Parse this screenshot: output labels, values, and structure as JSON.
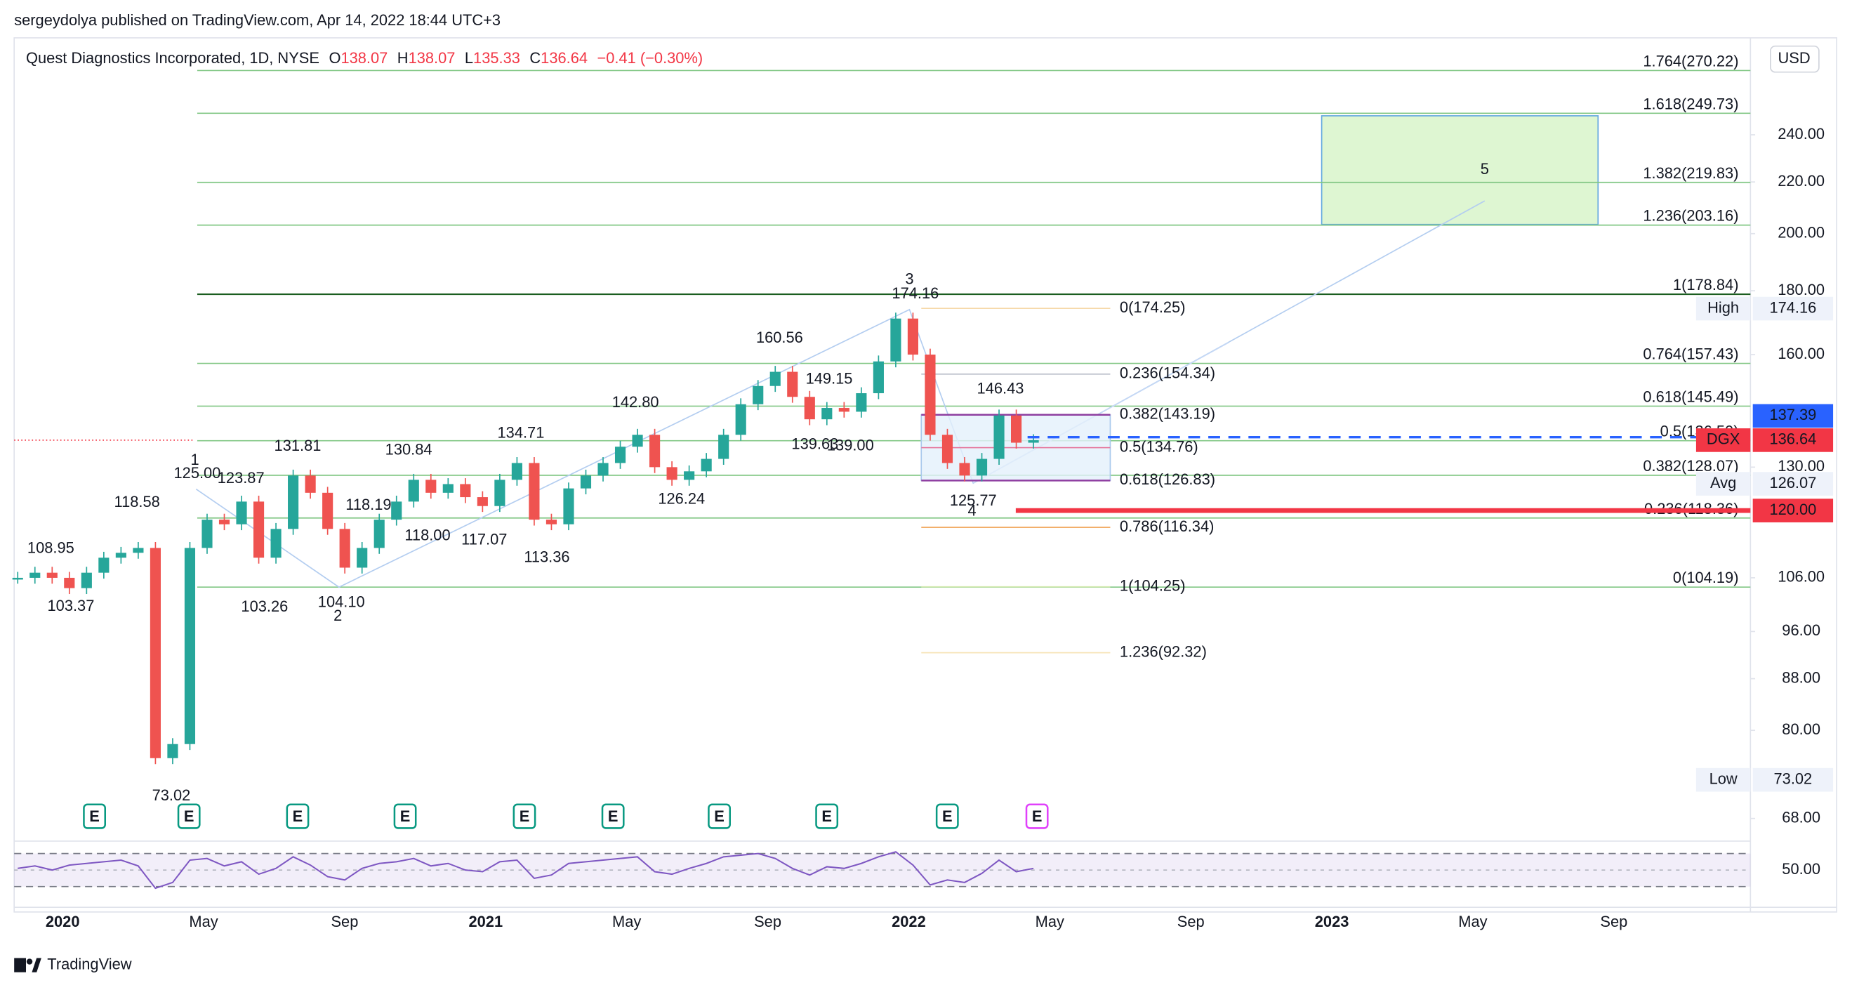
{
  "header": {
    "publisher": "sergeydolya published on TradingView.com, Apr 14, 2022 18:44 UTC+3"
  },
  "footer": {
    "brand": "TradingView"
  },
  "chart_data": {
    "type": "candle",
    "title": "Quest Diagnostics Incorporated, 1D, NYSE",
    "ohlc": [
      {
        "key": "O",
        "value": 138.07
      },
      {
        "key": "H",
        "value": 138.07
      },
      {
        "key": "L",
        "value": 135.33
      },
      {
        "key": "C",
        "value": 136.64
      }
    ],
    "change": "−0.41 (−0.30%)",
    "currency": "USD",
    "up_color": "#26a69a",
    "down_color": "#ef5350",
    "series": [
      {
        "name": "DGX",
        "color": "#f23645",
        "values": [
          106,
          107,
          106,
          104,
          107,
          110,
          111,
          112,
          76,
          78,
          112,
          118,
          117,
          122,
          110,
          116,
          128,
          124,
          116,
          108,
          112,
          118,
          122,
          127,
          124,
          126,
          123,
          121,
          127,
          131,
          118,
          117,
          125,
          128,
          131,
          135,
          138,
          130,
          127,
          129,
          132,
          138,
          146,
          151,
          155,
          148,
          142,
          145,
          144,
          149,
          158,
          171,
          160,
          138,
          131,
          128,
          132,
          143,
          136,
          136.64
        ]
      }
    ],
    "log_scale": true,
    "grid": false,
    "ylim": [
      65.5,
      287
    ],
    "yticks": [
      {
        "value": 68,
        "label": "68.00"
      },
      {
        "value": 80,
        "label": "80.00"
      },
      {
        "value": 88,
        "label": "88.00"
      },
      {
        "value": 96,
        "label": "96.00"
      },
      {
        "value": 106,
        "label": "106.00"
      },
      {
        "value": 130,
        "label": "130.00"
      },
      {
        "value": 160,
        "label": "160.00"
      },
      {
        "value": 180,
        "label": "180.00"
      },
      {
        "value": 200,
        "label": "200.00"
      },
      {
        "value": 220,
        "label": "220.00"
      },
      {
        "value": 240,
        "label": "240.00"
      }
    ],
    "xticks": [
      "2020",
      "May",
      "Sep",
      "2021",
      "May",
      "Sep",
      "2022",
      "May",
      "Sep",
      "2023",
      "May",
      "Sep"
    ],
    "fib_extension": [
      {
        "label": "1.764(270.22)",
        "value": 270.22,
        "color": "#81c784"
      },
      {
        "label": "1.618(249.73)",
        "value": 249.73,
        "color": "#81c784"
      },
      {
        "label": "1.382(219.83)",
        "value": 219.83,
        "color": "#81c784"
      },
      {
        "label": "1.236(203.16)",
        "value": 203.16,
        "color": "#81c784"
      },
      {
        "label": "1(178.84)",
        "value": 178.84,
        "color": "#1b5e20"
      },
      {
        "label": "0.764(157.43)",
        "value": 157.43,
        "color": "#81c784"
      },
      {
        "label": "0.618(145.49)",
        "value": 145.49,
        "color": "#81c784"
      },
      {
        "label": "0.5(136.50)",
        "value": 136.5,
        "color": "#81c784"
      },
      {
        "label": "0.382(128.07)",
        "value": 128.07,
        "color": "#81c784"
      },
      {
        "label": "0.236(118.36)",
        "value": 118.36,
        "color": "#81c784"
      },
      {
        "label": "0(104.19)",
        "value": 104.19,
        "color": "#81c784"
      }
    ],
    "fib_retracement": [
      {
        "label": "0(174.25)",
        "value": 174.25,
        "color": "#f6d8a8"
      },
      {
        "label": "0.236(154.34)",
        "value": 154.34,
        "color": "#b8bcc8"
      },
      {
        "label": "0.382(143.19)",
        "value": 143.19,
        "color": "#8e3ea0"
      },
      {
        "label": "0.5(134.76)",
        "value": 134.76,
        "color": "#e57399"
      },
      {
        "label": "0.618(126.83)",
        "value": 126.83,
        "color": "#8e3ea0"
      },
      {
        "label": "0.786(116.34)",
        "value": 116.34,
        "color": "#f0a050"
      },
      {
        "label": "1(104.25)",
        "value": 104.25,
        "color": "#d4eab0"
      },
      {
        "label": "1.236(92.32)",
        "value": 92.32,
        "color": "#f7e5b8"
      }
    ],
    "price_labels": [
      {
        "value": 108.95,
        "label": "108.95"
      },
      {
        "value": 103.37,
        "label": "103.37"
      },
      {
        "value": 118.58,
        "label": "118.58"
      },
      {
        "value": 73.02,
        "label": "73.02"
      },
      {
        "value": 125,
        "label": "125.00"
      },
      {
        "value": 123.87,
        "label": "123.87"
      },
      {
        "value": 131.81,
        "label": "131.81"
      },
      {
        "value": 103.26,
        "label": "103.26"
      },
      {
        "value": 104.1,
        "label": "104.10"
      },
      {
        "value": 118.19,
        "label": "118.19"
      },
      {
        "value": 130.84,
        "label": "130.84"
      },
      {
        "value": 118,
        "label": "118.00"
      },
      {
        "value": 134.71,
        "label": "134.71"
      },
      {
        "value": 117.07,
        "label": "117.07"
      },
      {
        "value": 113.36,
        "label": "113.36"
      },
      {
        "value": 142.8,
        "label": "142.80"
      },
      {
        "value": 126.24,
        "label": "126.24"
      },
      {
        "value": 160.56,
        "label": "160.56"
      },
      {
        "value": 149.15,
        "label": "149.15"
      },
      {
        "value": 139.63,
        "label": "139.63"
      },
      {
        "value": 139,
        "label": "139.00"
      },
      {
        "value": 174.16,
        "label": "174.16"
      },
      {
        "value": 146.43,
        "label": "146.43"
      },
      {
        "value": 125.77,
        "label": "125.77"
      }
    ],
    "waves": [
      "1",
      "2",
      "3",
      "4",
      "5"
    ],
    "stats": [
      {
        "label": "High",
        "value": 174.16
      },
      {
        "label": "Avg",
        "value": 126.07
      },
      {
        "label": "Low",
        "value": 73.02
      }
    ],
    "ray_line": {
      "value": 137.39,
      "label": "137.39"
    },
    "alert_line": {
      "value": 120,
      "label": "120.00"
    },
    "earnings": [
      "E",
      "E",
      "E",
      "E",
      "E",
      "E",
      "E",
      "E",
      "E",
      "E"
    ],
    "rsi": {
      "color": "#7e57c2",
      "ylim": [
        5,
        85
      ],
      "bands": [
        30,
        70
      ],
      "yticks": [
        {
          "value": 50,
          "label": "50.00"
        }
      ],
      "values": [
        52,
        55,
        50,
        56,
        58,
        60,
        62,
        55,
        28,
        35,
        62,
        64,
        55,
        60,
        45,
        52,
        66,
        56,
        42,
        38,
        52,
        58,
        60,
        64,
        55,
        58,
        50,
        48,
        60,
        62,
        40,
        44,
        58,
        60,
        62,
        64,
        66,
        48,
        45,
        52,
        58,
        66,
        68,
        70,
        64,
        52,
        44,
        54,
        52,
        58,
        66,
        72,
        56,
        32,
        38,
        35,
        46,
        62,
        48,
        52
      ]
    }
  }
}
